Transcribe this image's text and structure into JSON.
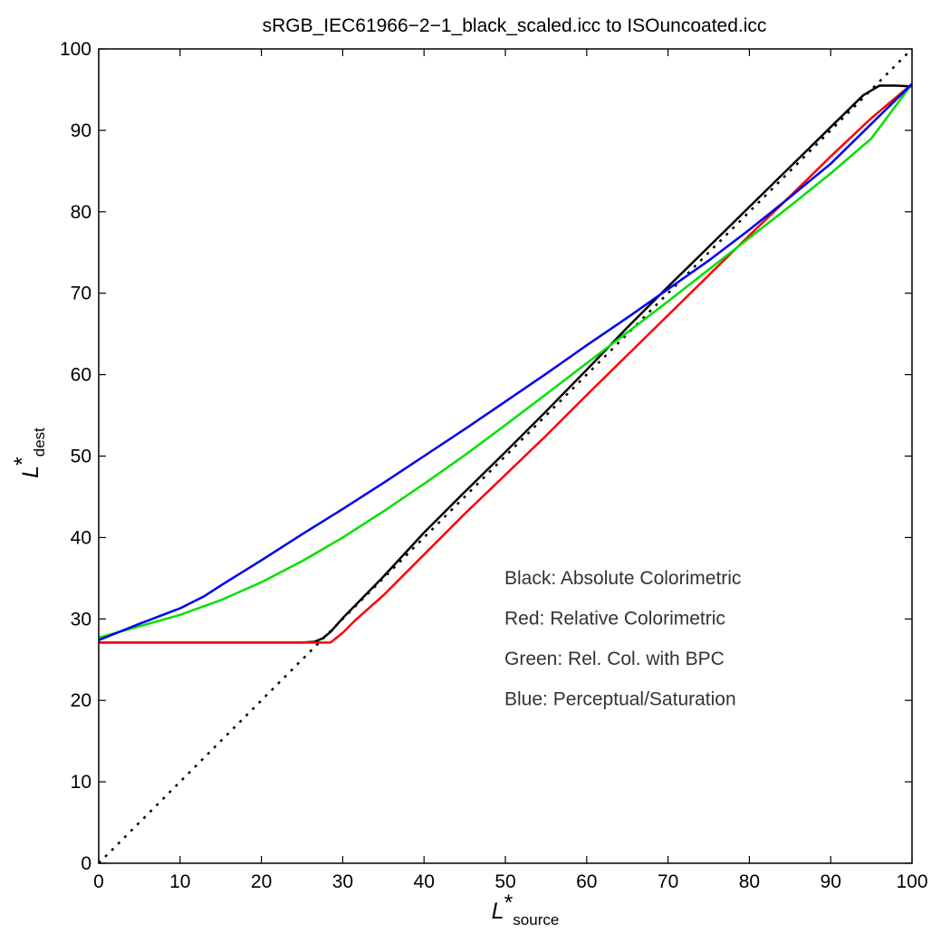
{
  "chart_data": {
    "type": "line",
    "title": "sRGB_IEC61966−2−1_black_scaled.icc to ISOuncoated.icc",
    "xlabel": {
      "main": "L",
      "star": "*",
      "sub": "source"
    },
    "ylabel": {
      "main": "L",
      "star": "*",
      "sub": "dest"
    },
    "xlim": [
      0,
      100
    ],
    "ylim": [
      0,
      100
    ],
    "xticks": [
      "0",
      "10",
      "20",
      "30",
      "40",
      "50",
      "60",
      "70",
      "80",
      "90",
      "100"
    ],
    "yticks": [
      "0",
      "10",
      "20",
      "30",
      "40",
      "50",
      "60",
      "70",
      "80",
      "90",
      "100"
    ],
    "grid": false,
    "annotations": [
      "Black:  Absolute Colorimetric",
      "Red:  Relative Colorimetric",
      "Green:  Rel. Col. with BPC",
      "Blue:  Perceptual/Saturation"
    ],
    "series": [
      {
        "color": "#000000",
        "style": "dotted",
        "x": [
          0,
          100
        ],
        "y": [
          0,
          100
        ]
      },
      {
        "color": "#000000",
        "style": "solid",
        "x": [
          0,
          10,
          20,
          25,
          26.5,
          27.5,
          28.5,
          30,
          35,
          40,
          45,
          50,
          55,
          60,
          65,
          70,
          75,
          80,
          85,
          90,
          94,
          96,
          98,
          100
        ],
        "y": [
          27.1,
          27.1,
          27.1,
          27.1,
          27.2,
          27.6,
          28.4,
          30.1,
          35.2,
          40.6,
          45.6,
          50.5,
          55.5,
          60.6,
          65.8,
          70.8,
          75.7,
          80.6,
          85.5,
          90.4,
          94.3,
          95.5,
          95.5,
          95.4
        ]
      },
      {
        "color": "#ff0000",
        "style": "solid",
        "x": [
          0,
          10,
          20,
          27,
          28.5,
          30,
          31.5,
          35,
          40,
          45,
          50,
          55,
          60,
          65,
          70,
          75,
          80,
          85,
          90,
          95,
          100
        ],
        "y": [
          27.1,
          27.1,
          27.1,
          27.1,
          27.1,
          28.3,
          29.8,
          32.9,
          37.9,
          42.9,
          47.7,
          52.5,
          57.5,
          62.4,
          67.3,
          72.2,
          77.1,
          81.9,
          86.8,
          91.5,
          95.7
        ]
      },
      {
        "color": "#00e000",
        "style": "solid",
        "x": [
          0,
          5,
          10,
          15,
          20,
          25,
          30,
          35,
          40,
          45,
          50,
          55,
          60,
          65,
          70,
          75,
          80,
          85,
          90,
          95,
          100
        ],
        "y": [
          27.7,
          29.1,
          30.5,
          32.3,
          34.5,
          37.1,
          40.0,
          43.2,
          46.6,
          50.1,
          53.8,
          57.6,
          61.4,
          65.2,
          69.0,
          72.9,
          76.8,
          80.7,
          84.7,
          89.0,
          95.7
        ]
      },
      {
        "color": "#0000ee",
        "style": "solid",
        "x": [
          0,
          5,
          10,
          13,
          15,
          20,
          25,
          30,
          35,
          40,
          45,
          50,
          55,
          60,
          65,
          70,
          75,
          80,
          85,
          90,
          95,
          100
        ],
        "y": [
          27.4,
          29.4,
          31.3,
          32.8,
          34.1,
          37.2,
          40.4,
          43.5,
          46.7,
          50.0,
          53.3,
          56.7,
          60.1,
          63.6,
          67.0,
          70.5,
          74.0,
          77.8,
          81.8,
          85.9,
          90.8,
          95.7
        ]
      }
    ]
  }
}
